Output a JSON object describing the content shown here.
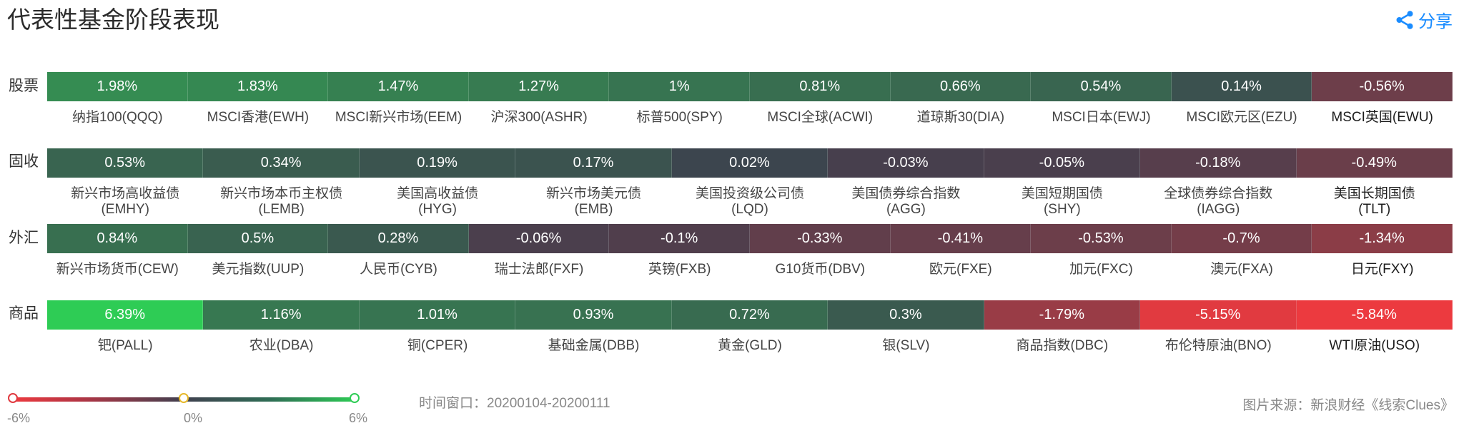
{
  "title": "代表性基金阶段表现",
  "share_label": "分享",
  "time_window": "时间窗口：20200104-20200111",
  "source": "图片来源：新浪财经《线索Clues》",
  "legend": {
    "min_label": "-6%",
    "mid_label": "0%",
    "max_label": "6%",
    "min": -6,
    "max": 6
  },
  "colors": {
    "negative": "#ef3a3f",
    "neutral": "#3d3f4e",
    "positive": "#2ecc55",
    "accent": "#1a8cff"
  },
  "chart_data": {
    "type": "heatmap",
    "title": "代表性基金阶段表现",
    "scale": {
      "min": -6,
      "max": 6,
      "unit": "%"
    },
    "rows": [
      {
        "label": "股票",
        "items": [
          {
            "value": 1.98,
            "value_label": "1.98%",
            "name": "纳指100(QQQ)"
          },
          {
            "value": 1.83,
            "value_label": "1.83%",
            "name": "MSCI香港(EWH)"
          },
          {
            "value": 1.47,
            "value_label": "1.47%",
            "name": "MSCI新兴市场(EEM)"
          },
          {
            "value": 1.27,
            "value_label": "1.27%",
            "name": "沪深300(ASHR)"
          },
          {
            "value": 1.0,
            "value_label": "1%",
            "name": "标普500(SPY)"
          },
          {
            "value": 0.81,
            "value_label": "0.81%",
            "name": "MSCI全球(ACWI)"
          },
          {
            "value": 0.66,
            "value_label": "0.66%",
            "name": "道琼斯30(DIA)"
          },
          {
            "value": 0.54,
            "value_label": "0.54%",
            "name": "MSCI日本(EWJ)"
          },
          {
            "value": 0.14,
            "value_label": "0.14%",
            "name": "MSCI欧元区(EZU)"
          },
          {
            "value": -0.56,
            "value_label": "-0.56%",
            "name": "MSCI英国(EWU)"
          }
        ]
      },
      {
        "label": "固收",
        "items": [
          {
            "value": 0.53,
            "value_label": "0.53%",
            "name": "新兴市场高收益债",
            "code": "(EMHY)"
          },
          {
            "value": 0.34,
            "value_label": "0.34%",
            "name": "新兴市场本币主权债",
            "code": "(LEMB)"
          },
          {
            "value": 0.19,
            "value_label": "0.19%",
            "name": "美国高收益债",
            "code": "(HYG)"
          },
          {
            "value": 0.17,
            "value_label": "0.17%",
            "name": "新兴市场美元债",
            "code": "(EMB)"
          },
          {
            "value": 0.02,
            "value_label": "0.02%",
            "name": "美国投资级公司债",
            "code": "(LQD)"
          },
          {
            "value": -0.03,
            "value_label": "-0.03%",
            "name": "美国债券综合指数",
            "code": "(AGG)"
          },
          {
            "value": -0.05,
            "value_label": "-0.05%",
            "name": "美国短期国债",
            "code": "(SHY)"
          },
          {
            "value": -0.18,
            "value_label": "-0.18%",
            "name": "全球债券综合指数",
            "code": "(IAGG)"
          },
          {
            "value": -0.49,
            "value_label": "-0.49%",
            "name": "美国长期国债",
            "code": "(TLT)"
          }
        ]
      },
      {
        "label": "外汇",
        "items": [
          {
            "value": 0.84,
            "value_label": "0.84%",
            "name": "新兴市场货币(CEW)"
          },
          {
            "value": 0.5,
            "value_label": "0.5%",
            "name": "美元指数(UUP)"
          },
          {
            "value": 0.28,
            "value_label": "0.28%",
            "name": "人民币(CYB)"
          },
          {
            "value": -0.06,
            "value_label": "-0.06%",
            "name": "瑞士法郎(FXF)"
          },
          {
            "value": -0.1,
            "value_label": "-0.1%",
            "name": "英镑(FXB)"
          },
          {
            "value": -0.33,
            "value_label": "-0.33%",
            "name": "G10货币(DBV)"
          },
          {
            "value": -0.41,
            "value_label": "-0.41%",
            "name": "欧元(FXE)"
          },
          {
            "value": -0.53,
            "value_label": "-0.53%",
            "name": "加元(FXC)"
          },
          {
            "value": -0.7,
            "value_label": "-0.7%",
            "name": "澳元(FXA)"
          },
          {
            "value": -1.34,
            "value_label": "-1.34%",
            "name": "日元(FXY)"
          }
        ]
      },
      {
        "label": "商品",
        "items": [
          {
            "value": 6.39,
            "value_label": "6.39%",
            "name": "钯(PALL)"
          },
          {
            "value": 1.16,
            "value_label": "1.16%",
            "name": "农业(DBA)"
          },
          {
            "value": 1.01,
            "value_label": "1.01%",
            "name": "铜(CPER)"
          },
          {
            "value": 0.93,
            "value_label": "0.93%",
            "name": "基础金属(DBB)"
          },
          {
            "value": 0.72,
            "value_label": "0.72%",
            "name": "黄金(GLD)"
          },
          {
            "value": 0.3,
            "value_label": "0.3%",
            "name": "银(SLV)"
          },
          {
            "value": -1.79,
            "value_label": "-1.79%",
            "name": "商品指数(DBC)"
          },
          {
            "value": -5.15,
            "value_label": "-5.15%",
            "name": "布伦特原油(BNO)"
          },
          {
            "value": -5.84,
            "value_label": "-5.84%",
            "name": "WTI原油(USO)"
          }
        ]
      }
    ]
  }
}
